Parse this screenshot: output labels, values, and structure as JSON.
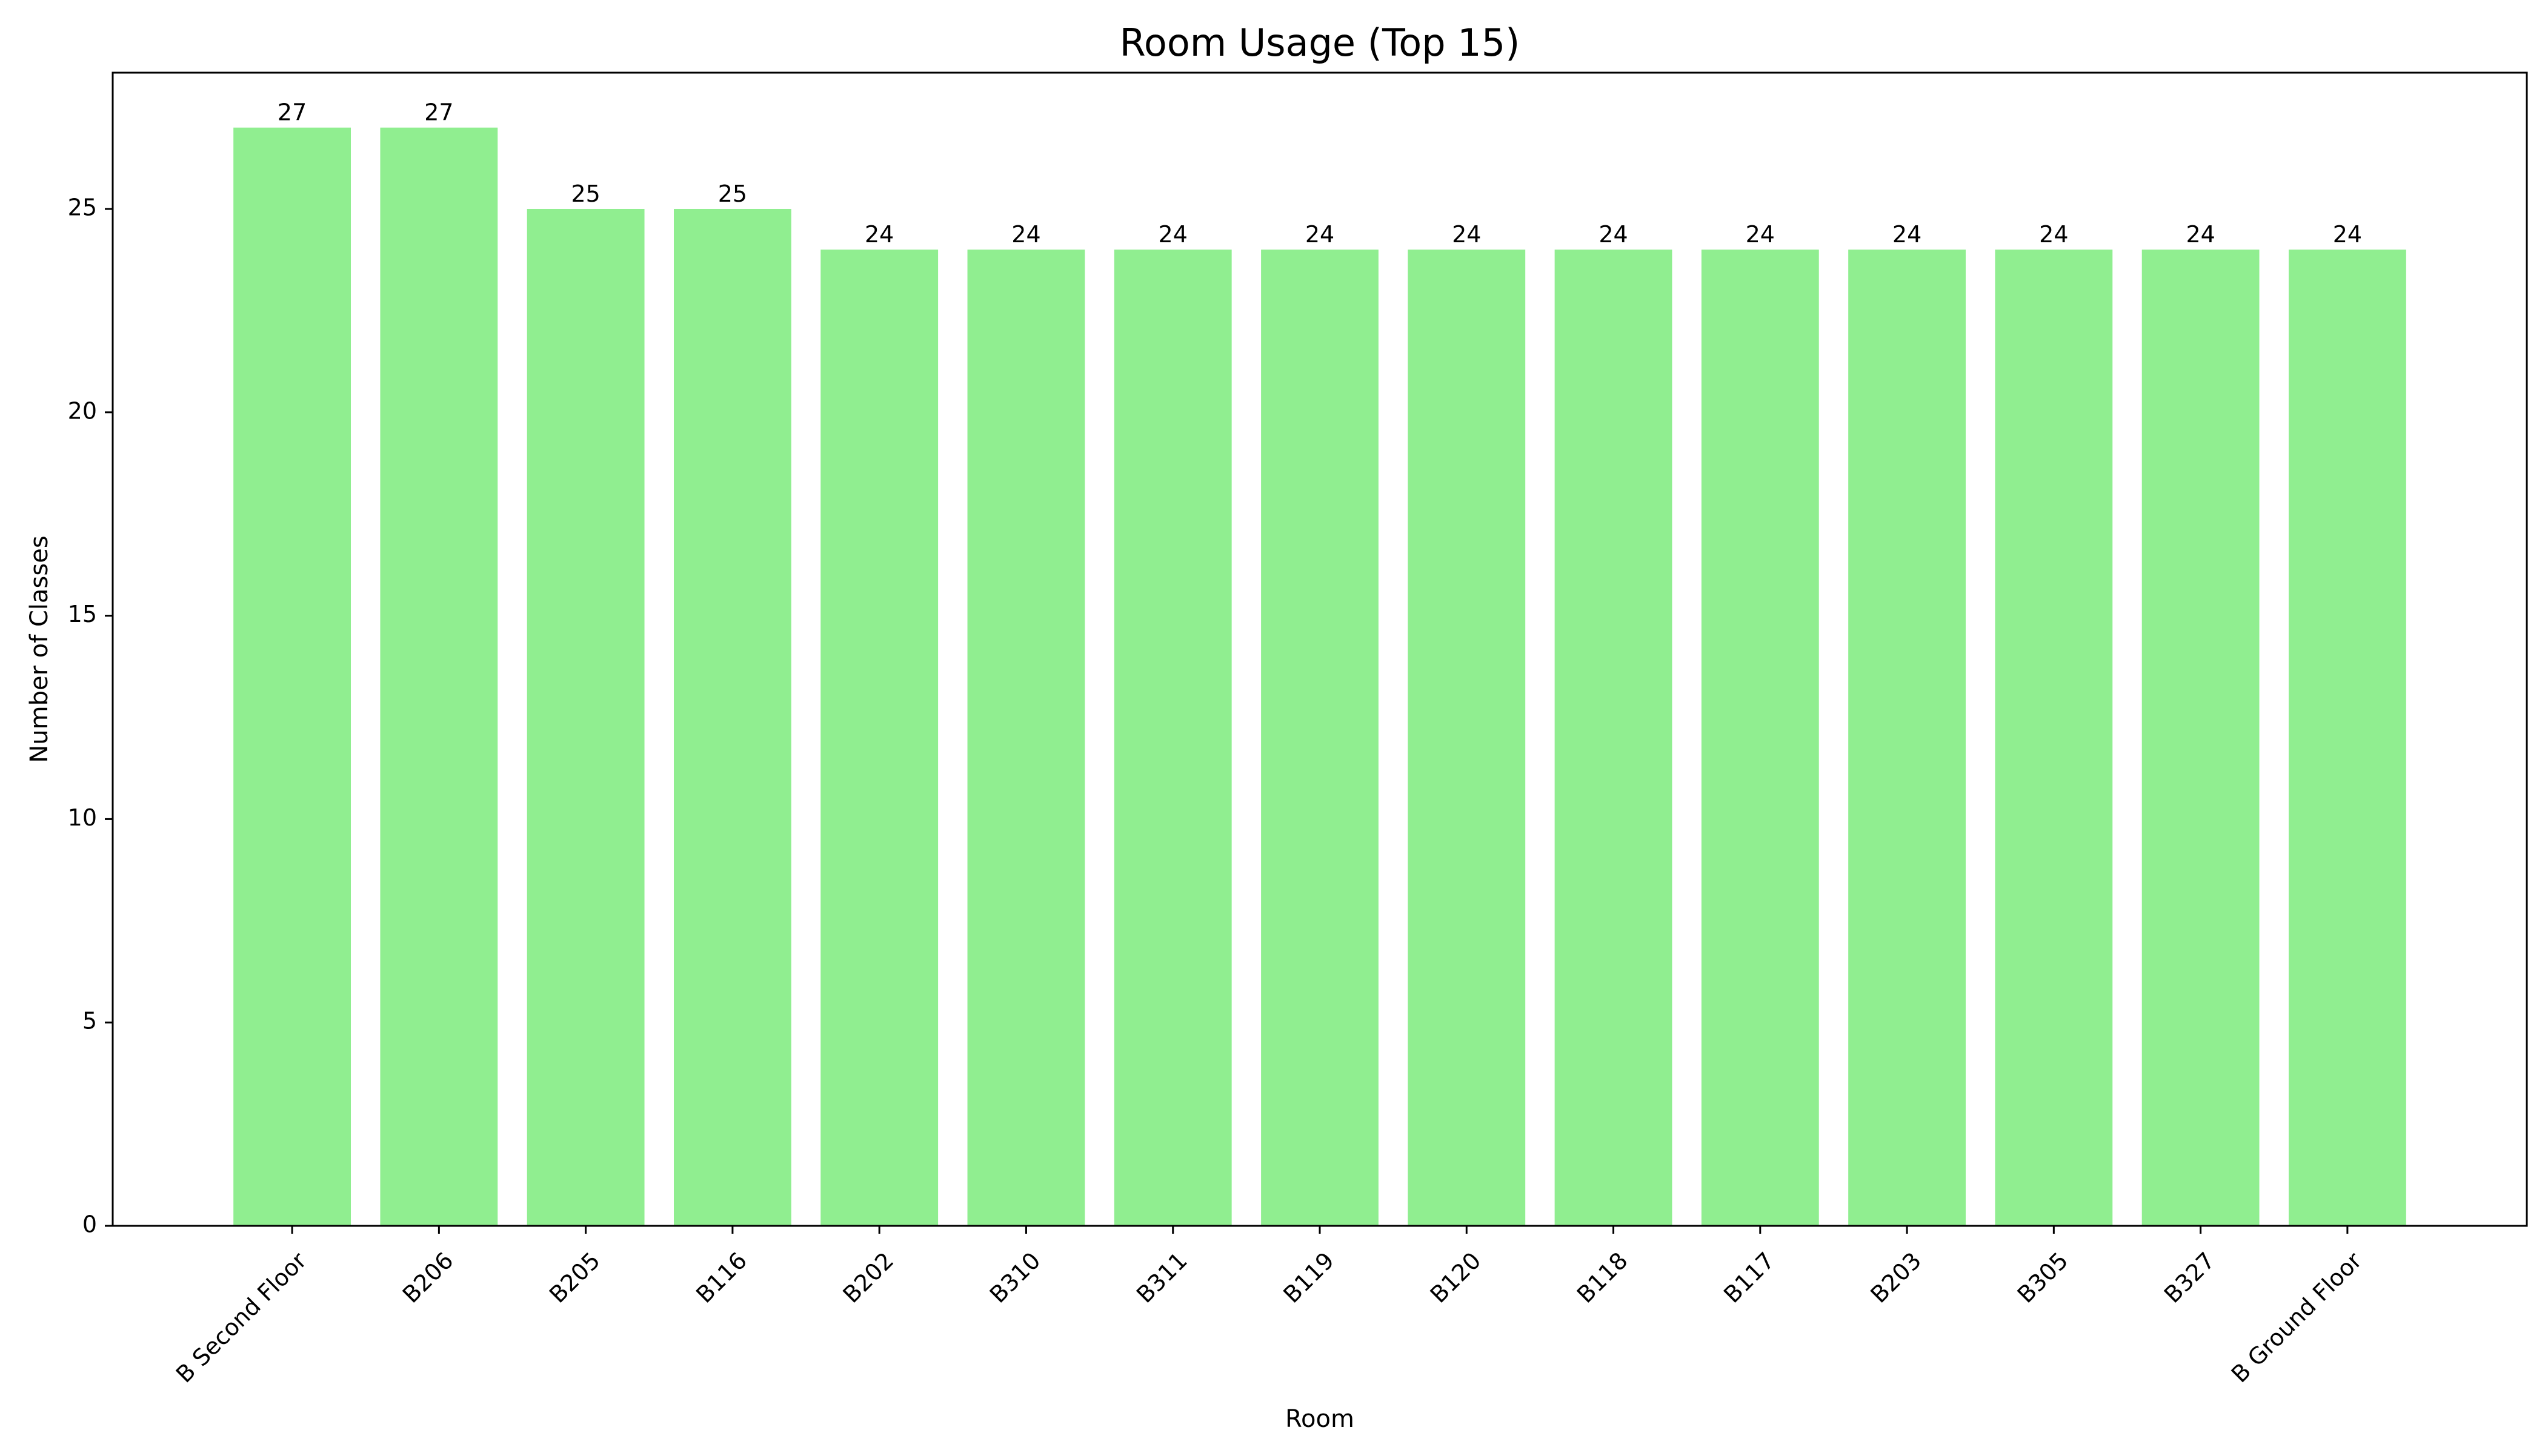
{
  "chart_data": {
    "type": "bar",
    "title": "Room Usage (Top 15)",
    "xlabel": "Room",
    "ylabel": "Number of Classes",
    "categories": [
      "B Second Floor",
      "B206",
      "B205",
      "B116",
      "B202",
      "B310",
      "B311",
      "B119",
      "B120",
      "B118",
      "B117",
      "B203",
      "B305",
      "B327",
      "B Ground Floor"
    ],
    "values": [
      27,
      27,
      25,
      25,
      24,
      24,
      24,
      24,
      24,
      24,
      24,
      24,
      24,
      24,
      24
    ],
    "ylim": [
      0,
      28.35
    ],
    "yticks": [
      0,
      5,
      10,
      15,
      20,
      25
    ],
    "grid": false,
    "bar_color": "#90ee90",
    "data_labels": true
  }
}
